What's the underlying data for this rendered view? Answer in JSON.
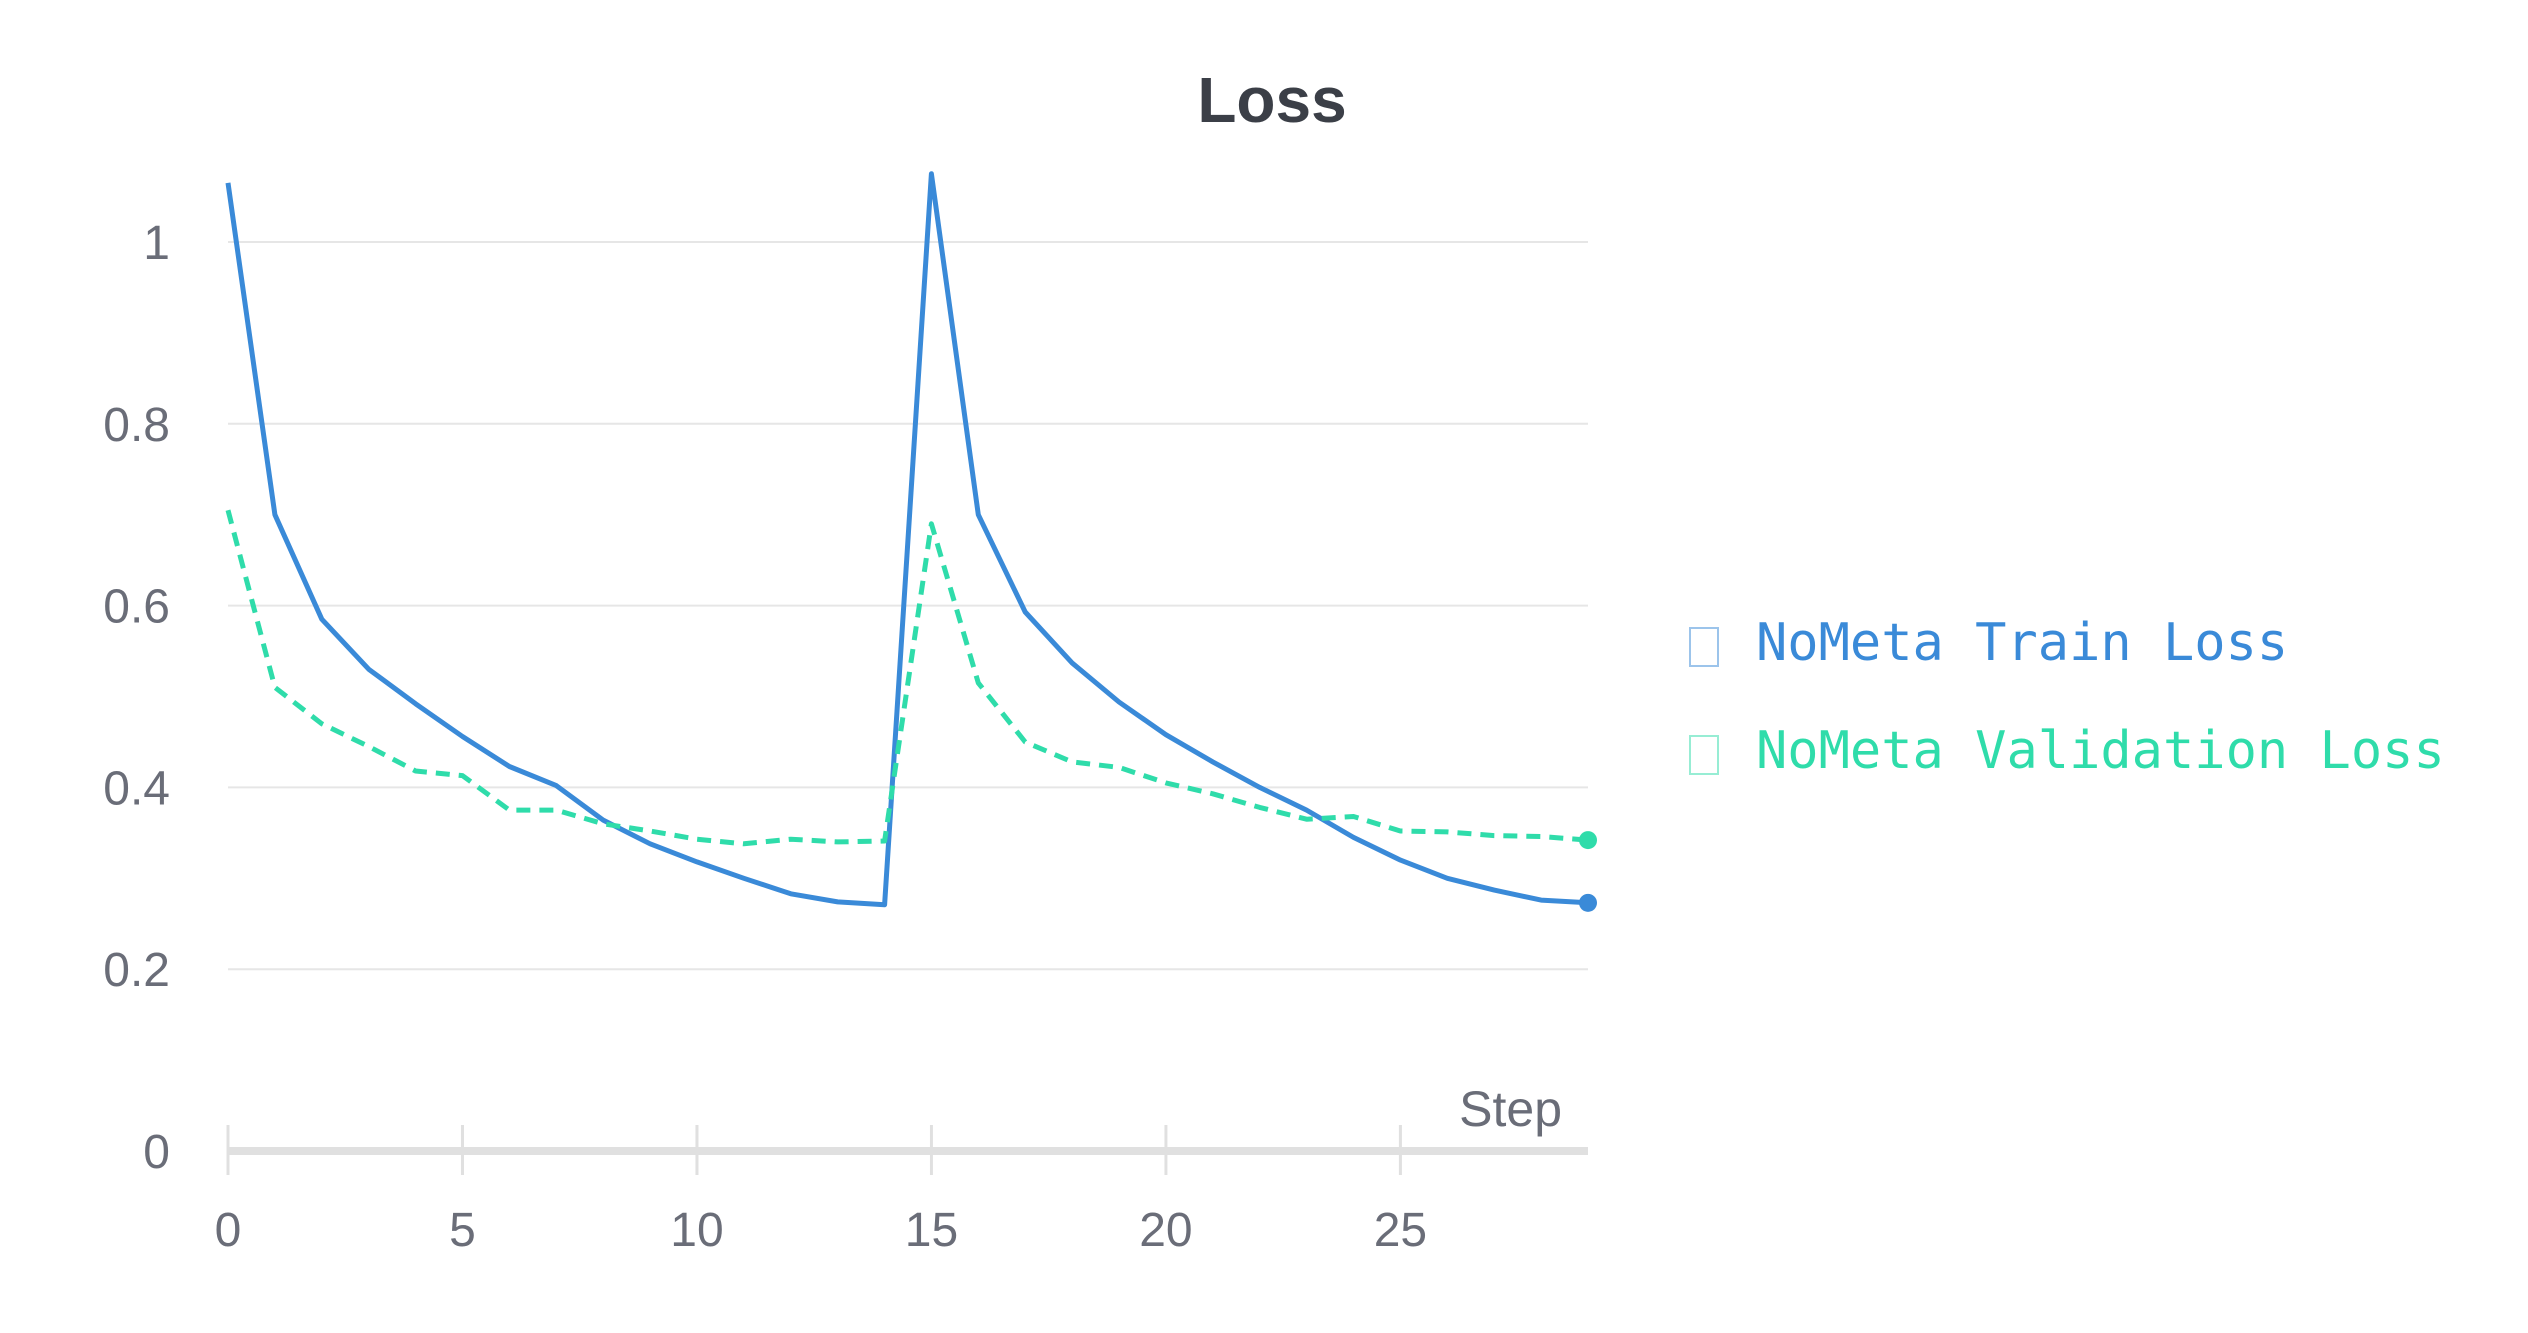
{
  "colors": {
    "train": "#3a8ad8",
    "validation": "#2fdcaa",
    "grid": "#e6e6e6",
    "axis": "#e0e0e0",
    "tick_text": "#6a6d78",
    "title": "#3b3f47"
  },
  "chart_data": {
    "type": "line",
    "title": "Loss",
    "xlabel": "Step",
    "ylabel": "",
    "xlim": [
      0,
      29
    ],
    "ylim": [
      0,
      1.1
    ],
    "x_ticks": [
      "0",
      "5",
      "10",
      "15",
      "20",
      "25"
    ],
    "y_ticks": [
      "0",
      "0.2",
      "0.4",
      "0.6",
      "0.8",
      "1"
    ],
    "grid": true,
    "legend_position": "right",
    "x": [
      0,
      1,
      2,
      3,
      4,
      5,
      6,
      7,
      8,
      9,
      10,
      11,
      12,
      13,
      14,
      15,
      16,
      17,
      18,
      19,
      20,
      21,
      22,
      23,
      24,
      25,
      26,
      27,
      28,
      29
    ],
    "series": [
      {
        "name": "NoMeta Train Loss",
        "color": "#3a8ad8",
        "style": "solid",
        "values": [
          1.065,
          0.7,
          0.585,
          0.53,
          0.492,
          0.456,
          0.423,
          0.402,
          0.364,
          0.338,
          0.318,
          0.3,
          0.283,
          0.274,
          0.271,
          1.075,
          0.7,
          0.593,
          0.537,
          0.494,
          0.458,
          0.428,
          0.4,
          0.375,
          0.345,
          0.32,
          0.3,
          0.287,
          0.276,
          0.273
        ]
      },
      {
        "name": "NoMeta Validation Loss",
        "color": "#2fdcaa",
        "style": "dashed",
        "values": [
          0.705,
          0.51,
          0.47,
          0.445,
          0.418,
          0.413,
          0.375,
          0.375,
          0.36,
          0.352,
          0.343,
          0.338,
          0.343,
          0.34,
          0.341,
          0.69,
          0.515,
          0.45,
          0.428,
          0.422,
          0.405,
          0.393,
          0.378,
          0.365,
          0.368,
          0.352,
          0.351,
          0.347,
          0.346,
          0.342
        ]
      }
    ]
  }
}
